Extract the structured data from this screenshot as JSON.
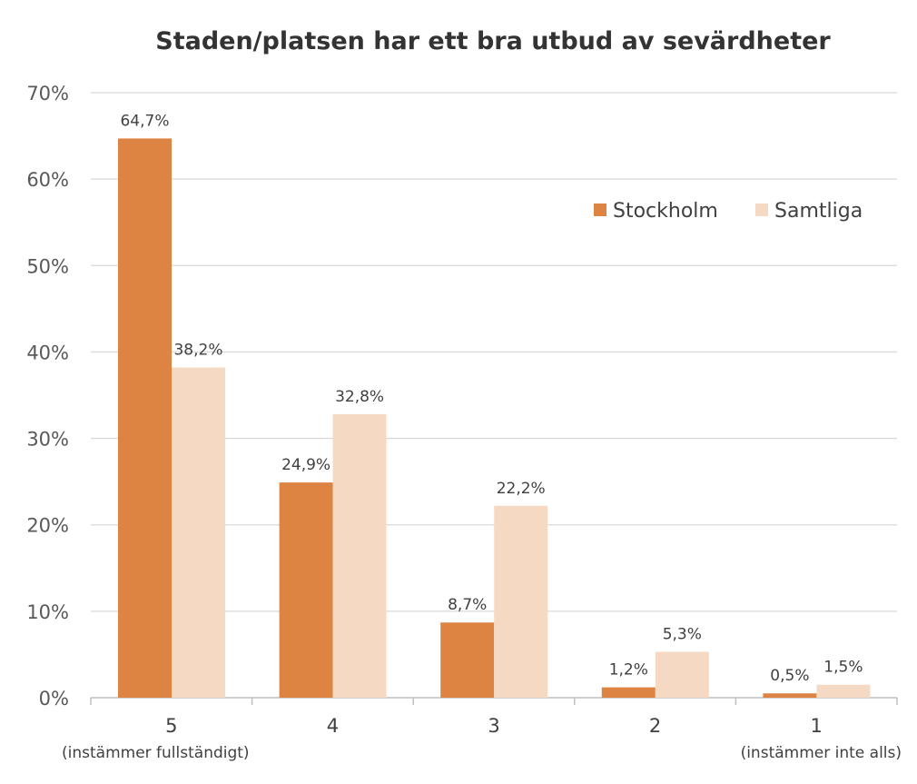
{
  "chart_data": {
    "type": "bar",
    "title": "Staden/platsen har ett bra utbud av sevärdheter",
    "categories": [
      "5",
      "4",
      "3",
      "2",
      "1"
    ],
    "category_sublabels": [
      "(instämmer fullständigt)",
      "",
      "",
      "",
      "(instämmer inte alls)"
    ],
    "series": [
      {
        "name": "Stockholm",
        "color": "#DE8442",
        "values": [
          64.7,
          24.9,
          8.7,
          1.2,
          0.5
        ],
        "labels": [
          "64,7%",
          "24,9%",
          "8,7%",
          "1,2%",
          "0,5%"
        ]
      },
      {
        "name": "Samtliga",
        "color": "#F5D9C3",
        "values": [
          38.2,
          32.8,
          22.2,
          5.3,
          1.5
        ],
        "labels": [
          "38,2%",
          "32,8%",
          "22,2%",
          "5,3%",
          "1,5%"
        ]
      }
    ],
    "ylim": [
      0,
      70
    ],
    "yticks": [
      "0%",
      "10%",
      "20%",
      "30%",
      "40%",
      "50%",
      "60%",
      "70%"
    ],
    "xlabel": "",
    "ylabel": "",
    "grid": true,
    "legend_position": "top-right"
  }
}
